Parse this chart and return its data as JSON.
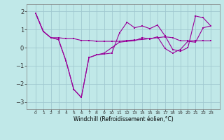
{
  "background_color": "#c0e8e8",
  "grid_color": "#a0c8d0",
  "line_color": "#990099",
  "x_labels": [
    "0",
    "1",
    "2",
    "3",
    "4",
    "5",
    "6",
    "7",
    "8",
    "9",
    "10",
    "11",
    "12",
    "13",
    "14",
    "15",
    "16",
    "17",
    "18",
    "19",
    "20",
    "21",
    "22",
    "23"
  ],
  "xlabel": "Windchill (Refroidissement éolien,°C)",
  "ylim": [
    -3.4,
    2.4
  ],
  "yticks": [
    -3,
    -2,
    -1,
    0,
    1,
    2
  ],
  "line1": [
    1.9,
    0.9,
    0.55,
    0.55,
    0.5,
    0.5,
    0.4,
    0.4,
    0.35,
    0.35,
    0.35,
    0.35,
    0.4,
    0.42,
    0.45,
    0.5,
    0.55,
    0.6,
    0.55,
    0.38,
    0.38,
    0.38,
    0.38,
    0.38
  ],
  "line2": [
    1.9,
    0.9,
    0.55,
    0.45,
    -0.75,
    -2.3,
    -2.75,
    -0.55,
    -0.4,
    -0.35,
    -0.3,
    0.8,
    1.4,
    1.1,
    1.2,
    1.05,
    1.25,
    0.65,
    -0.1,
    -0.2,
    0.0,
    1.75,
    1.65,
    1.2
  ],
  "line3": [
    1.9,
    0.9,
    0.55,
    0.45,
    -0.75,
    -2.3,
    -2.75,
    -0.55,
    -0.4,
    -0.3,
    0.0,
    0.3,
    0.35,
    0.38,
    0.55,
    0.48,
    0.6,
    -0.05,
    -0.3,
    -0.1,
    0.35,
    0.3,
    1.1,
    1.2
  ]
}
